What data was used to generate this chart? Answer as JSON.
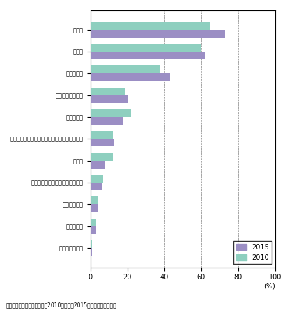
{
  "categories": [
    "人件費",
    "税負担",
    "事務所賌料",
    "社会保障費の負担",
    "物流コスト",
    "設備費用（工場設備、情報機器・事務機械等）",
    "その他",
    "公共料金（電気、ガス、水道等）",
    "土地取得費用",
    "通信コスト",
    "用地リース費用"
  ],
  "values_2015": [
    73,
    62,
    43,
    20,
    18,
    13,
    8,
    6,
    4,
    3,
    1
  ],
  "values_2010": [
    65,
    60,
    38,
    19,
    22,
    12,
    12,
    7,
    4,
    3,
    1
  ],
  "color_2015": "#9b8ec4",
  "color_2010": "#8ecfbf",
  "xlim": [
    0,
    100
  ],
  "xticks": [
    0,
    20,
    40,
    60,
    80,
    100
  ],
  "xlabel": "(%)",
  "footnote": "資料：外資系企業動向調査（2010年実績、2015年実績）から引用。",
  "legend_2015": "2015",
  "legend_2010": "2010",
  "bar_height": 0.35,
  "figure_width": 4.19,
  "figure_height": 4.45
}
